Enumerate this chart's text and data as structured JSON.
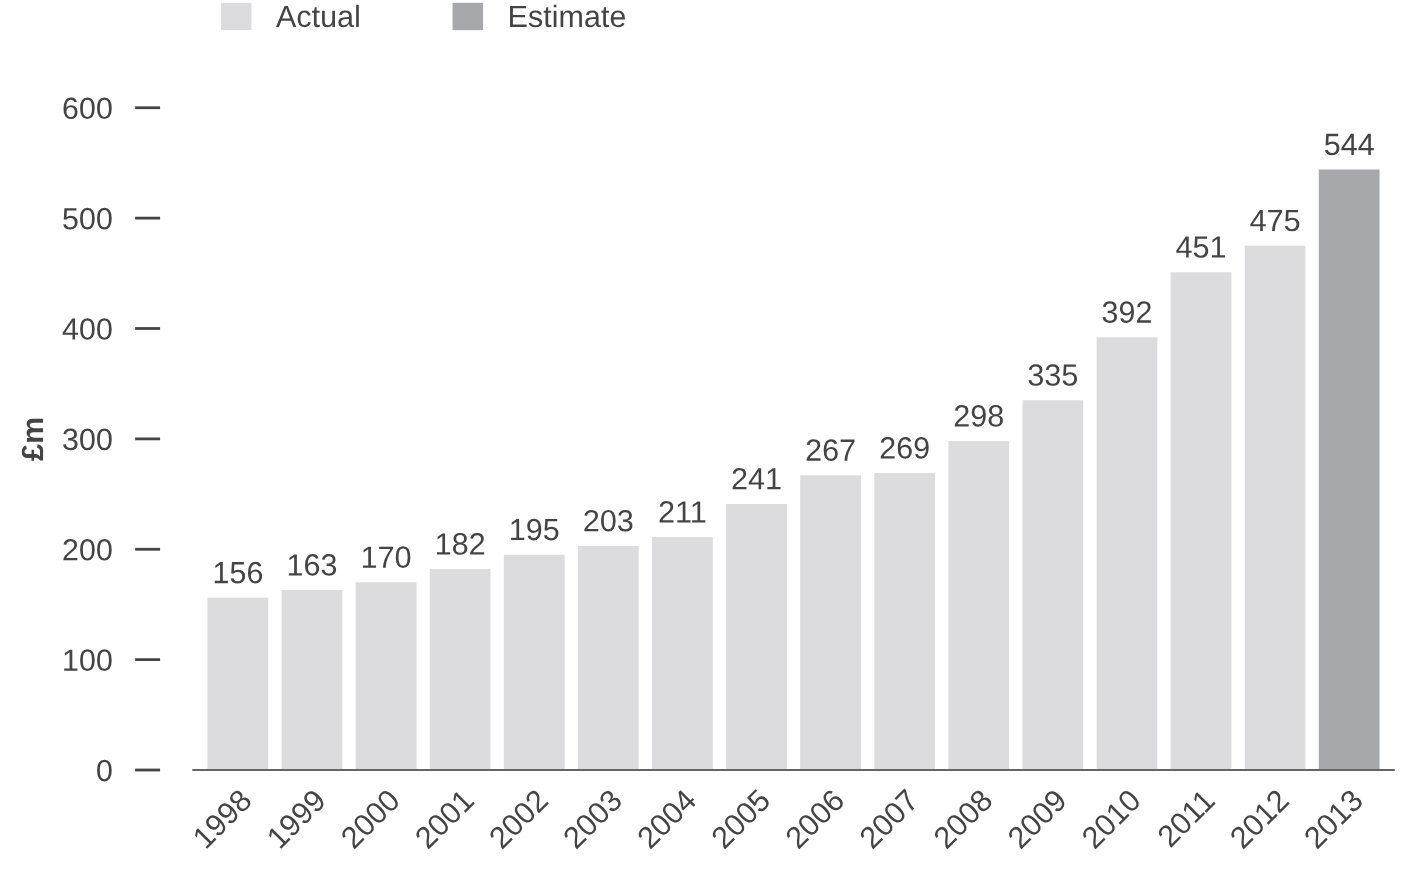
{
  "chart_data": {
    "type": "bar",
    "ylabel": "£m",
    "categories": [
      "1998",
      "1999",
      "2000",
      "2001",
      "2002",
      "2003",
      "2004",
      "2005",
      "2006",
      "2007",
      "2008",
      "2009",
      "2010",
      "2011",
      "2012",
      "2013"
    ],
    "series": [
      {
        "name": "Actual",
        "color": "#dcdcde",
        "values": [
          156,
          163,
          170,
          182,
          195,
          203,
          211,
          241,
          267,
          269,
          298,
          335,
          392,
          451,
          475,
          null
        ]
      },
      {
        "name": "Estimate",
        "color": "#a7a8ab",
        "values": [
          null,
          null,
          null,
          null,
          null,
          null,
          null,
          null,
          null,
          null,
          null,
          null,
          null,
          null,
          null,
          544
        ]
      }
    ],
    "ylim": [
      0,
      600
    ],
    "yticks": [
      0,
      100,
      200,
      300,
      400,
      500,
      600
    ],
    "data_labels": true,
    "legend": "top",
    "grid": false
  }
}
